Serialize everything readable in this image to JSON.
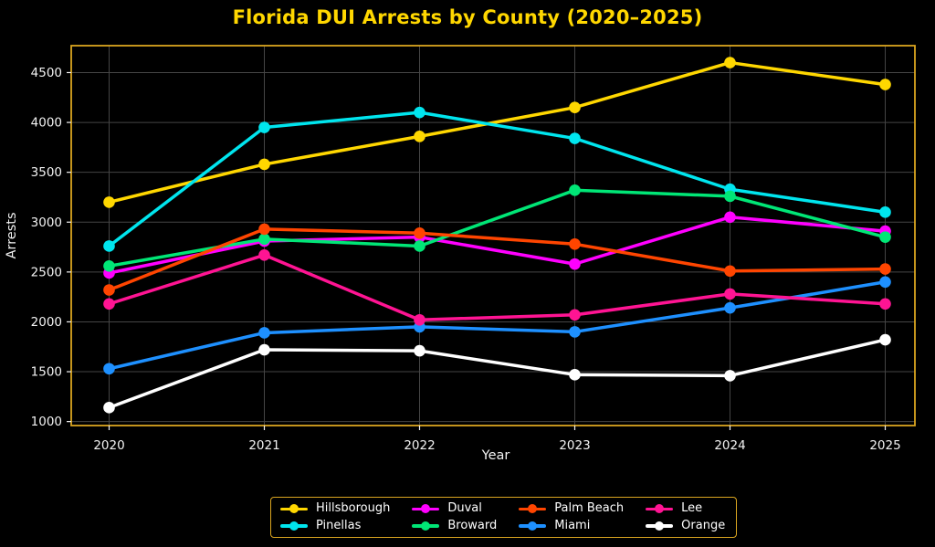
{
  "title": "Florida DUI Arrests by County (2020–2025)",
  "colors": {
    "background": "#000000",
    "title": "#FFD700",
    "axis_border": "#DAA520",
    "grid": "#454545",
    "tick_text": "#F2F2F2"
  },
  "chart_data": {
    "type": "line",
    "title": "Florida DUI Arrests by County (2020–2025)",
    "xlabel": "Year",
    "ylabel": "Arrests",
    "categories": [
      "2020",
      "2021",
      "2022",
      "2023",
      "2024",
      "2025"
    ],
    "yticks": [
      1000,
      1500,
      2000,
      2500,
      3000,
      3500,
      4000,
      4500
    ],
    "ylim": [
      960,
      4770
    ],
    "grid": true,
    "legend_position": "bottom-center",
    "marker": "circle",
    "series": [
      {
        "name": "Hillsborough",
        "color": "#FFD700",
        "values": [
          3200,
          3580,
          3860,
          4150,
          4600,
          4380
        ]
      },
      {
        "name": "Pinellas",
        "color": "#00E5EE",
        "values": [
          2760,
          3950,
          4100,
          3840,
          3330,
          3100
        ]
      },
      {
        "name": "Duval",
        "color": "#FF00FF",
        "values": [
          2490,
          2810,
          2850,
          2580,
          3050,
          2910
        ]
      },
      {
        "name": "Broward",
        "color": "#00E676",
        "values": [
          2560,
          2830,
          2760,
          3320,
          3260,
          2850
        ]
      },
      {
        "name": "Palm Beach",
        "color": "#FF4500",
        "values": [
          2320,
          2930,
          2890,
          2780,
          2510,
          2530
        ]
      },
      {
        "name": "Miami",
        "color": "#1E90FF",
        "values": [
          1530,
          1890,
          1950,
          1900,
          2140,
          2400
        ]
      },
      {
        "name": "Lee",
        "color": "#FF1493",
        "values": [
          2180,
          2670,
          2020,
          2070,
          2280,
          2180
        ]
      },
      {
        "name": "Orange",
        "color": "#FFFFFF",
        "values": [
          1140,
          1720,
          1710,
          1470,
          1460,
          1820
        ]
      }
    ]
  }
}
